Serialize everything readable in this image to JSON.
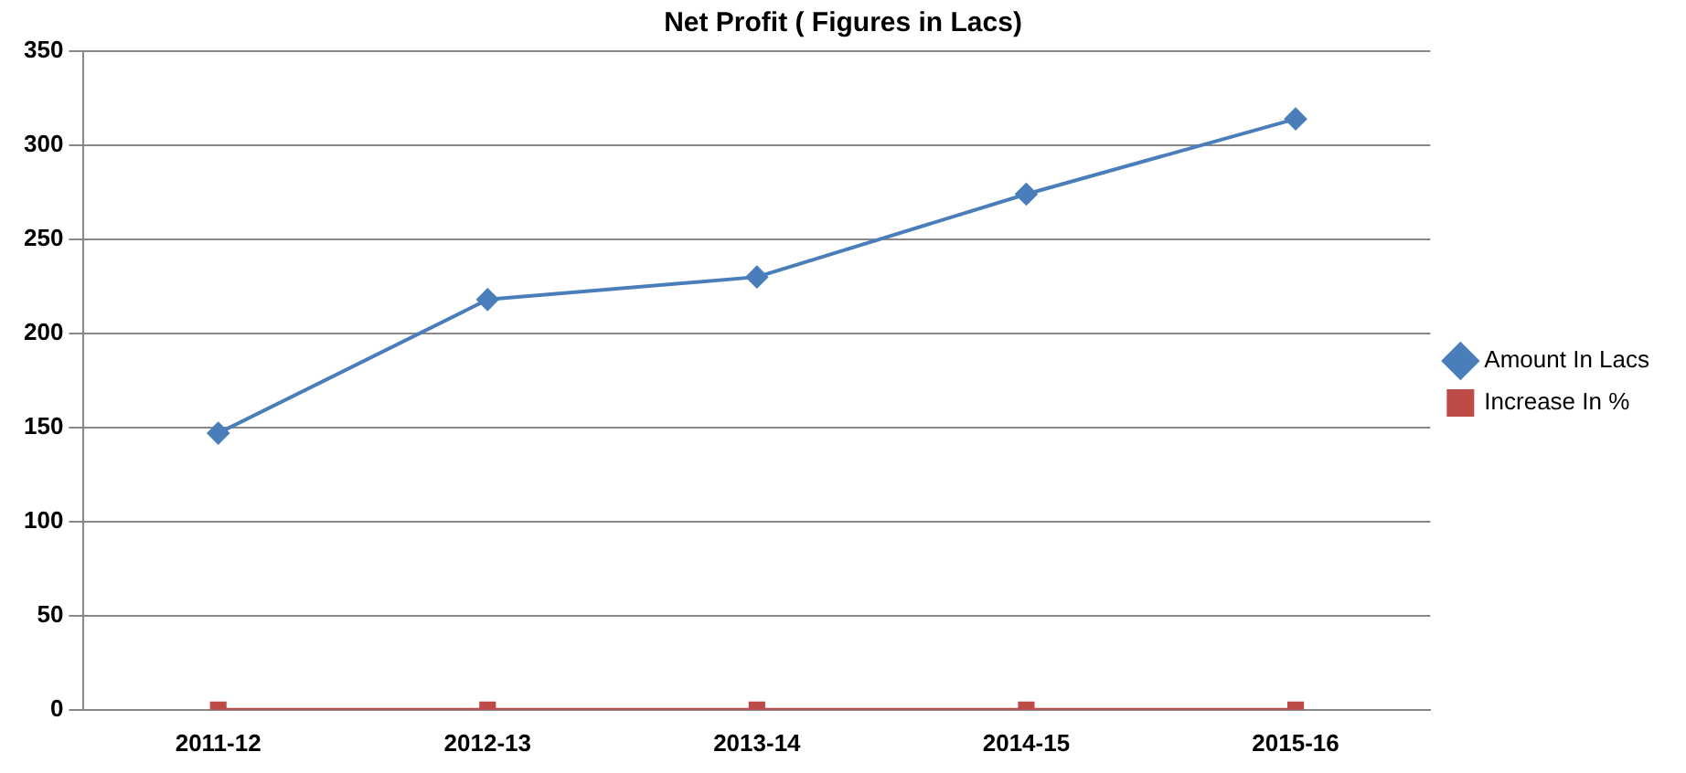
{
  "chart_data": {
    "type": "line",
    "title": "Net Profit ( Figures in Lacs)",
    "categories": [
      "2011-12",
      "2012-13",
      "2013-14",
      "2014-15",
      "2015-16"
    ],
    "series": [
      {
        "name": "Amount In Lacs",
        "color": "#4a7ebb",
        "marker": "diamond",
        "values": [
          147,
          218,
          230,
          274,
          314
        ]
      },
      {
        "name": "Increase In %",
        "color": "#be4b48",
        "marker": "square",
        "values": [
          0,
          0,
          0,
          0,
          0
        ]
      }
    ],
    "ylim": [
      0,
      350
    ],
    "yticks": [
      0,
      50,
      100,
      150,
      200,
      250,
      300,
      350
    ],
    "grid": "y",
    "legend": "right"
  }
}
